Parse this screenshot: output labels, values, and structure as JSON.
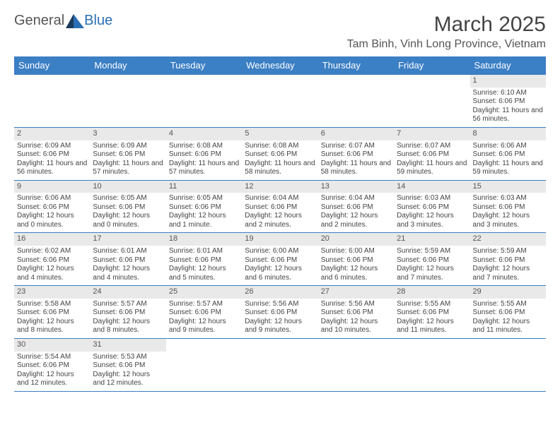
{
  "logo": {
    "text1": "General",
    "text2": "Blue"
  },
  "title": "March 2025",
  "location": "Tam Binh, Vinh Long Province, Vietnam",
  "colors": {
    "header_bg": "#3b7fc4",
    "header_text": "#ffffff",
    "daynum_bg": "#e9e9e9",
    "border": "#3b7fc4",
    "text": "#444444",
    "logo_blue": "#2a6fb5",
    "logo_dark": "#1a3a5c"
  },
  "day_headers": [
    "Sunday",
    "Monday",
    "Tuesday",
    "Wednesday",
    "Thursday",
    "Friday",
    "Saturday"
  ],
  "weeks": [
    [
      null,
      null,
      null,
      null,
      null,
      null,
      {
        "n": "1",
        "sr": "Sunrise: 6:10 AM",
        "ss": "Sunset: 6:06 PM",
        "dl": "Daylight: 11 hours and 56 minutes."
      }
    ],
    [
      {
        "n": "2",
        "sr": "Sunrise: 6:09 AM",
        "ss": "Sunset: 6:06 PM",
        "dl": "Daylight: 11 hours and 56 minutes."
      },
      {
        "n": "3",
        "sr": "Sunrise: 6:09 AM",
        "ss": "Sunset: 6:06 PM",
        "dl": "Daylight: 11 hours and 57 minutes."
      },
      {
        "n": "4",
        "sr": "Sunrise: 6:08 AM",
        "ss": "Sunset: 6:06 PM",
        "dl": "Daylight: 11 hours and 57 minutes."
      },
      {
        "n": "5",
        "sr": "Sunrise: 6:08 AM",
        "ss": "Sunset: 6:06 PM",
        "dl": "Daylight: 11 hours and 58 minutes."
      },
      {
        "n": "6",
        "sr": "Sunrise: 6:07 AM",
        "ss": "Sunset: 6:06 PM",
        "dl": "Daylight: 11 hours and 58 minutes."
      },
      {
        "n": "7",
        "sr": "Sunrise: 6:07 AM",
        "ss": "Sunset: 6:06 PM",
        "dl": "Daylight: 11 hours and 59 minutes."
      },
      {
        "n": "8",
        "sr": "Sunrise: 6:06 AM",
        "ss": "Sunset: 6:06 PM",
        "dl": "Daylight: 11 hours and 59 minutes."
      }
    ],
    [
      {
        "n": "9",
        "sr": "Sunrise: 6:06 AM",
        "ss": "Sunset: 6:06 PM",
        "dl": "Daylight: 12 hours and 0 minutes."
      },
      {
        "n": "10",
        "sr": "Sunrise: 6:05 AM",
        "ss": "Sunset: 6:06 PM",
        "dl": "Daylight: 12 hours and 0 minutes."
      },
      {
        "n": "11",
        "sr": "Sunrise: 6:05 AM",
        "ss": "Sunset: 6:06 PM",
        "dl": "Daylight: 12 hours and 1 minute."
      },
      {
        "n": "12",
        "sr": "Sunrise: 6:04 AM",
        "ss": "Sunset: 6:06 PM",
        "dl": "Daylight: 12 hours and 2 minutes."
      },
      {
        "n": "13",
        "sr": "Sunrise: 6:04 AM",
        "ss": "Sunset: 6:06 PM",
        "dl": "Daylight: 12 hours and 2 minutes."
      },
      {
        "n": "14",
        "sr": "Sunrise: 6:03 AM",
        "ss": "Sunset: 6:06 PM",
        "dl": "Daylight: 12 hours and 3 minutes."
      },
      {
        "n": "15",
        "sr": "Sunrise: 6:03 AM",
        "ss": "Sunset: 6:06 PM",
        "dl": "Daylight: 12 hours and 3 minutes."
      }
    ],
    [
      {
        "n": "16",
        "sr": "Sunrise: 6:02 AM",
        "ss": "Sunset: 6:06 PM",
        "dl": "Daylight: 12 hours and 4 minutes."
      },
      {
        "n": "17",
        "sr": "Sunrise: 6:01 AM",
        "ss": "Sunset: 6:06 PM",
        "dl": "Daylight: 12 hours and 4 minutes."
      },
      {
        "n": "18",
        "sr": "Sunrise: 6:01 AM",
        "ss": "Sunset: 6:06 PM",
        "dl": "Daylight: 12 hours and 5 minutes."
      },
      {
        "n": "19",
        "sr": "Sunrise: 6:00 AM",
        "ss": "Sunset: 6:06 PM",
        "dl": "Daylight: 12 hours and 6 minutes."
      },
      {
        "n": "20",
        "sr": "Sunrise: 6:00 AM",
        "ss": "Sunset: 6:06 PM",
        "dl": "Daylight: 12 hours and 6 minutes."
      },
      {
        "n": "21",
        "sr": "Sunrise: 5:59 AM",
        "ss": "Sunset: 6:06 PM",
        "dl": "Daylight: 12 hours and 7 minutes."
      },
      {
        "n": "22",
        "sr": "Sunrise: 5:59 AM",
        "ss": "Sunset: 6:06 PM",
        "dl": "Daylight: 12 hours and 7 minutes."
      }
    ],
    [
      {
        "n": "23",
        "sr": "Sunrise: 5:58 AM",
        "ss": "Sunset: 6:06 PM",
        "dl": "Daylight: 12 hours and 8 minutes."
      },
      {
        "n": "24",
        "sr": "Sunrise: 5:57 AM",
        "ss": "Sunset: 6:06 PM",
        "dl": "Daylight: 12 hours and 8 minutes."
      },
      {
        "n": "25",
        "sr": "Sunrise: 5:57 AM",
        "ss": "Sunset: 6:06 PM",
        "dl": "Daylight: 12 hours and 9 minutes."
      },
      {
        "n": "26",
        "sr": "Sunrise: 5:56 AM",
        "ss": "Sunset: 6:06 PM",
        "dl": "Daylight: 12 hours and 9 minutes."
      },
      {
        "n": "27",
        "sr": "Sunrise: 5:56 AM",
        "ss": "Sunset: 6:06 PM",
        "dl": "Daylight: 12 hours and 10 minutes."
      },
      {
        "n": "28",
        "sr": "Sunrise: 5:55 AM",
        "ss": "Sunset: 6:06 PM",
        "dl": "Daylight: 12 hours and 11 minutes."
      },
      {
        "n": "29",
        "sr": "Sunrise: 5:55 AM",
        "ss": "Sunset: 6:06 PM",
        "dl": "Daylight: 12 hours and 11 minutes."
      }
    ],
    [
      {
        "n": "30",
        "sr": "Sunrise: 5:54 AM",
        "ss": "Sunset: 6:06 PM",
        "dl": "Daylight: 12 hours and 12 minutes."
      },
      {
        "n": "31",
        "sr": "Sunrise: 5:53 AM",
        "ss": "Sunset: 6:06 PM",
        "dl": "Daylight: 12 hours and 12 minutes."
      },
      null,
      null,
      null,
      null,
      null
    ]
  ]
}
